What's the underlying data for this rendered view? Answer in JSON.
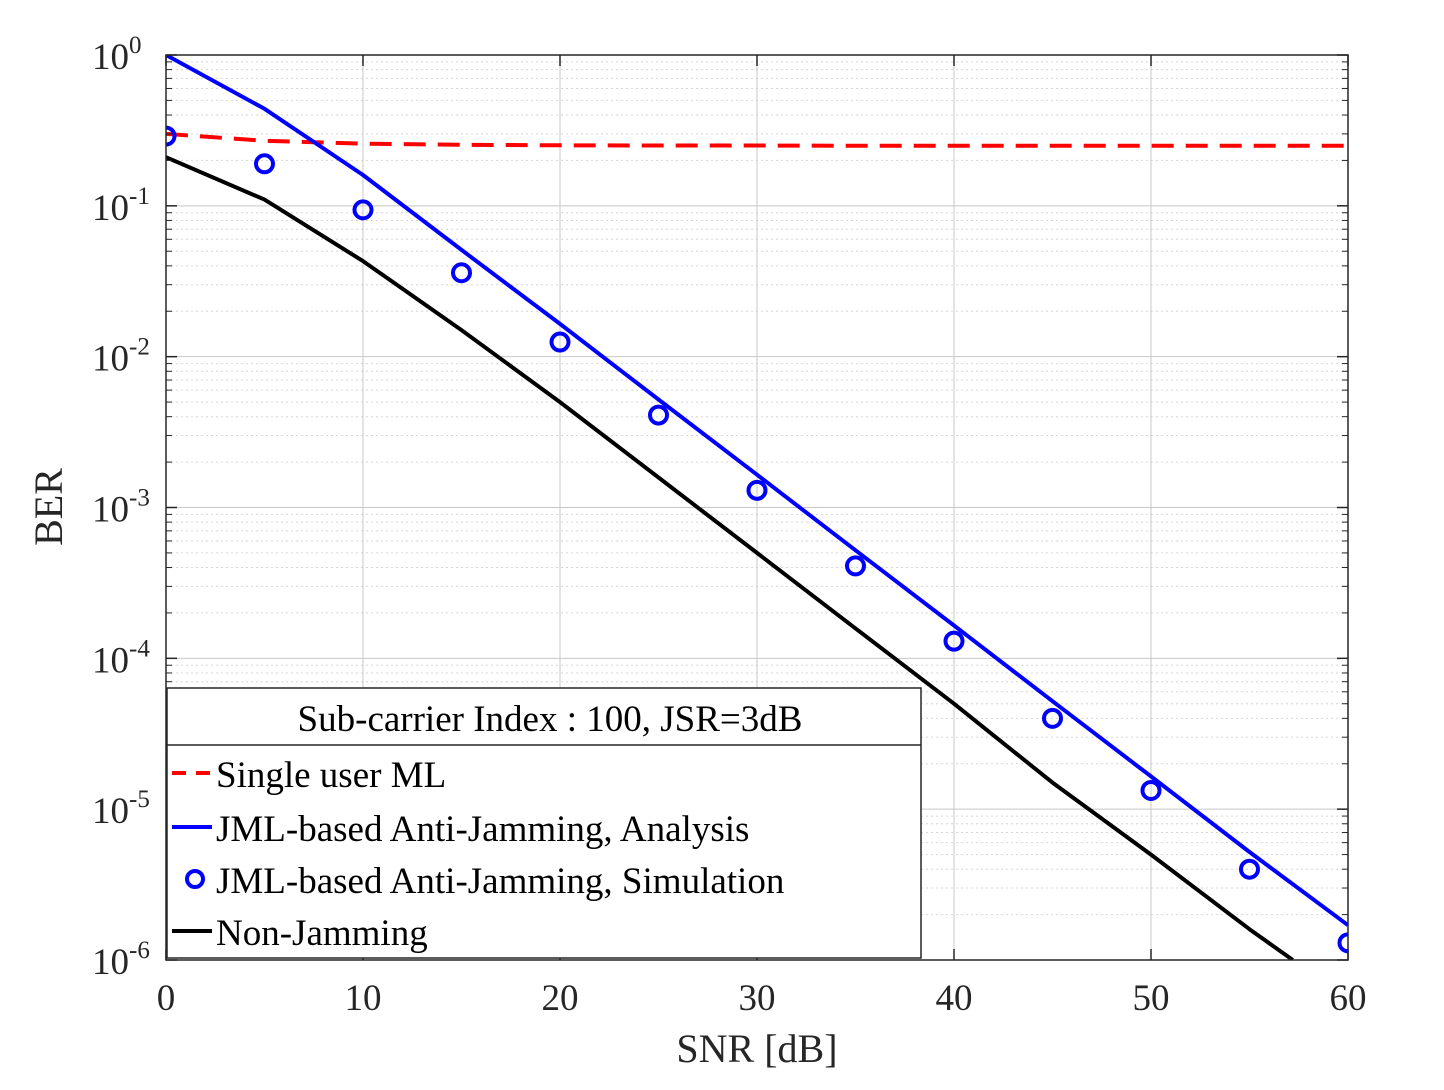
{
  "chart_data": {
    "type": "line",
    "xlabel": "SNR [dB]",
    "ylabel": "BER",
    "xscale": "linear",
    "yscale": "log",
    "xlim": [
      0,
      60
    ],
    "ylim": [
      1e-06,
      1
    ],
    "x_ticks": [
      0,
      10,
      20,
      30,
      40,
      50,
      60
    ],
    "x_tick_labels": [
      "0",
      "10",
      "20",
      "30",
      "40",
      "50",
      "60"
    ],
    "y_ticks": [
      {
        "value": 1,
        "base": "10",
        "exp": "0"
      },
      {
        "value": 0.1,
        "base": "10",
        "exp": "-1"
      },
      {
        "value": 0.01,
        "base": "10",
        "exp": "-2"
      },
      {
        "value": 0.001,
        "base": "10",
        "exp": "-3"
      },
      {
        "value": 0.0001,
        "base": "10",
        "exp": "-4"
      },
      {
        "value": 1e-05,
        "base": "10",
        "exp": "-5"
      },
      {
        "value": 1e-06,
        "base": "10",
        "exp": "-6"
      }
    ],
    "grid": true,
    "minor_grid": true,
    "legend": {
      "title": "Sub-carrier Index : 100, JSR=3dB",
      "location": "bottom-left"
    },
    "series": [
      {
        "name": "Single user ML",
        "color": "#ff0000",
        "style": "dashed",
        "x": [
          0,
          5,
          10,
          15,
          20,
          25,
          30,
          35,
          40,
          45,
          50,
          55,
          60
        ],
        "y": [
          0.3,
          0.27,
          0.258,
          0.254,
          0.252,
          0.251,
          0.251,
          0.25,
          0.25,
          0.25,
          0.25,
          0.25,
          0.25
        ]
      },
      {
        "name": "JML-based Anti-Jamming, Analysis",
        "color": "#0000ff",
        "style": "solid",
        "x": [
          0,
          5,
          10,
          15,
          20,
          25,
          30,
          35,
          40,
          45,
          50,
          55,
          60
        ],
        "y": [
          1.0,
          0.44,
          0.16,
          0.051,
          0.0165,
          0.0052,
          0.00165,
          0.00052,
          0.000165,
          5.2e-05,
          1.65e-05,
          5.2e-06,
          1.7e-06
        ]
      },
      {
        "name": "JML-based Anti-Jamming, Simulation",
        "color": "#0000ff",
        "style": "markers",
        "x": [
          0,
          5,
          10,
          15,
          20,
          25,
          30,
          35,
          40,
          45,
          50,
          55,
          60
        ],
        "y": [
          0.29,
          0.19,
          0.094,
          0.036,
          0.0125,
          0.0041,
          0.0013,
          0.00041,
          0.00013,
          4e-05,
          1.33e-05,
          4e-06,
          1.3e-06
        ]
      },
      {
        "name": "Non-Jamming",
        "color": "#000000",
        "style": "solid",
        "x": [
          0,
          5,
          10,
          15,
          20,
          25,
          30,
          35,
          40,
          45,
          50,
          55,
          57.2
        ],
        "y": [
          0.21,
          0.11,
          0.043,
          0.015,
          0.005,
          0.00158,
          0.0005,
          0.000158,
          5e-05,
          1.5e-05,
          5e-06,
          1.6e-06,
          1e-06
        ]
      }
    ]
  }
}
